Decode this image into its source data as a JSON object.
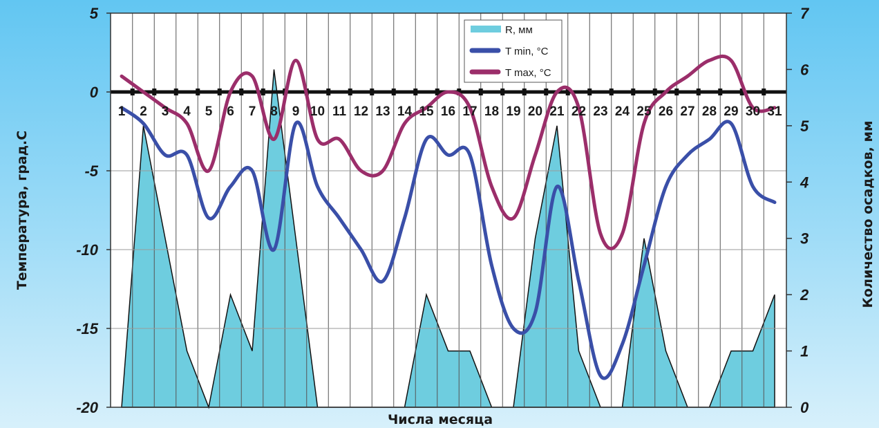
{
  "chart_data": {
    "type": "line",
    "x_label": "Числа месяца",
    "y_left_label": "Температура, град.С",
    "y_right_label": "Количество осадков, мм",
    "y_left_range": [
      -20,
      5
    ],
    "y_right_range": [
      0,
      7
    ],
    "y_left_ticks": [
      "5",
      "0",
      "-5",
      "-10",
      "-15",
      "-20"
    ],
    "y_right_ticks": [
      "7",
      "6",
      "5",
      "4",
      "3",
      "2",
      "1",
      "0"
    ],
    "days": [
      "1",
      "2",
      "3",
      "4",
      "5",
      "6",
      "7",
      "8",
      "9",
      "10",
      "11",
      "12",
      "13",
      "14",
      "15",
      "16",
      "17",
      "18",
      "19",
      "20",
      "21",
      "22",
      "23",
      "24",
      "25",
      "26",
      "27",
      "28",
      "29",
      "30",
      "31"
    ],
    "series": [
      {
        "name": "R, мм",
        "kind": "area",
        "axis": "right",
        "color": "#6ecddf",
        "values": [
          0,
          5,
          3,
          1,
          0,
          2,
          1,
          6,
          3,
          0,
          0,
          0,
          0,
          0,
          2,
          1,
          1,
          0,
          0,
          3,
          5,
          1,
          0,
          0,
          3,
          1,
          0,
          0,
          1,
          1,
          2
        ]
      },
      {
        "name": "T min, °C",
        "kind": "line",
        "axis": "left",
        "color": "#3a4fa8",
        "values": [
          -1,
          -2,
          -4,
          -4,
          -8,
          -6,
          -5,
          -10,
          -2,
          -6,
          -8,
          -10,
          -12,
          -8,
          -3,
          -4,
          -4,
          -11,
          -15,
          -14,
          -6,
          -12,
          -18,
          -16,
          -11,
          -6,
          -4,
          -3,
          -2,
          -6,
          -7
        ]
      },
      {
        "name": "T max, °C",
        "kind": "line",
        "axis": "left",
        "color": "#9b2e6a",
        "values": [
          1,
          0,
          -1,
          -2,
          -5,
          0,
          1,
          -3,
          2,
          -3,
          -3,
          -5,
          -5,
          -2,
          -1,
          0,
          -1,
          -6,
          -8,
          -4,
          0,
          -1,
          -9,
          -9,
          -2,
          0,
          1,
          2,
          2,
          -1,
          -1
        ]
      }
    ],
    "zero_line": 0,
    "legend_position": "top-center",
    "grid": true
  }
}
